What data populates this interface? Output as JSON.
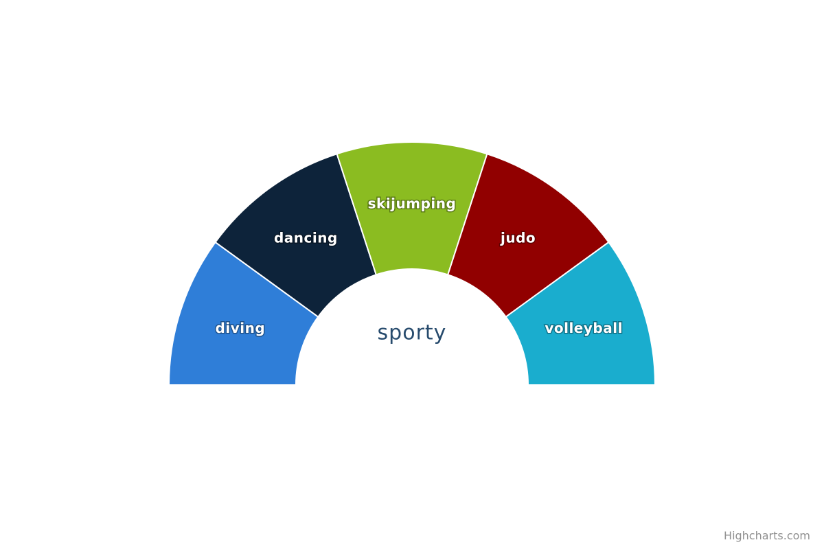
{
  "chart_data": {
    "type": "pie",
    "variant": "semi-donut",
    "title": "sporty",
    "categories": [
      "diving",
      "dancing",
      "skijumping",
      "judo",
      "volleyball"
    ],
    "values": [
      1,
      1,
      1,
      1,
      1
    ],
    "colors": [
      "#2f7ed8",
      "#0d233a",
      "#8bbc21",
      "#910000",
      "#1aadce"
    ],
    "start_angle_deg": -90,
    "end_angle_deg": 90,
    "legend": "none"
  },
  "credits": {
    "text": "Highcharts.com"
  }
}
